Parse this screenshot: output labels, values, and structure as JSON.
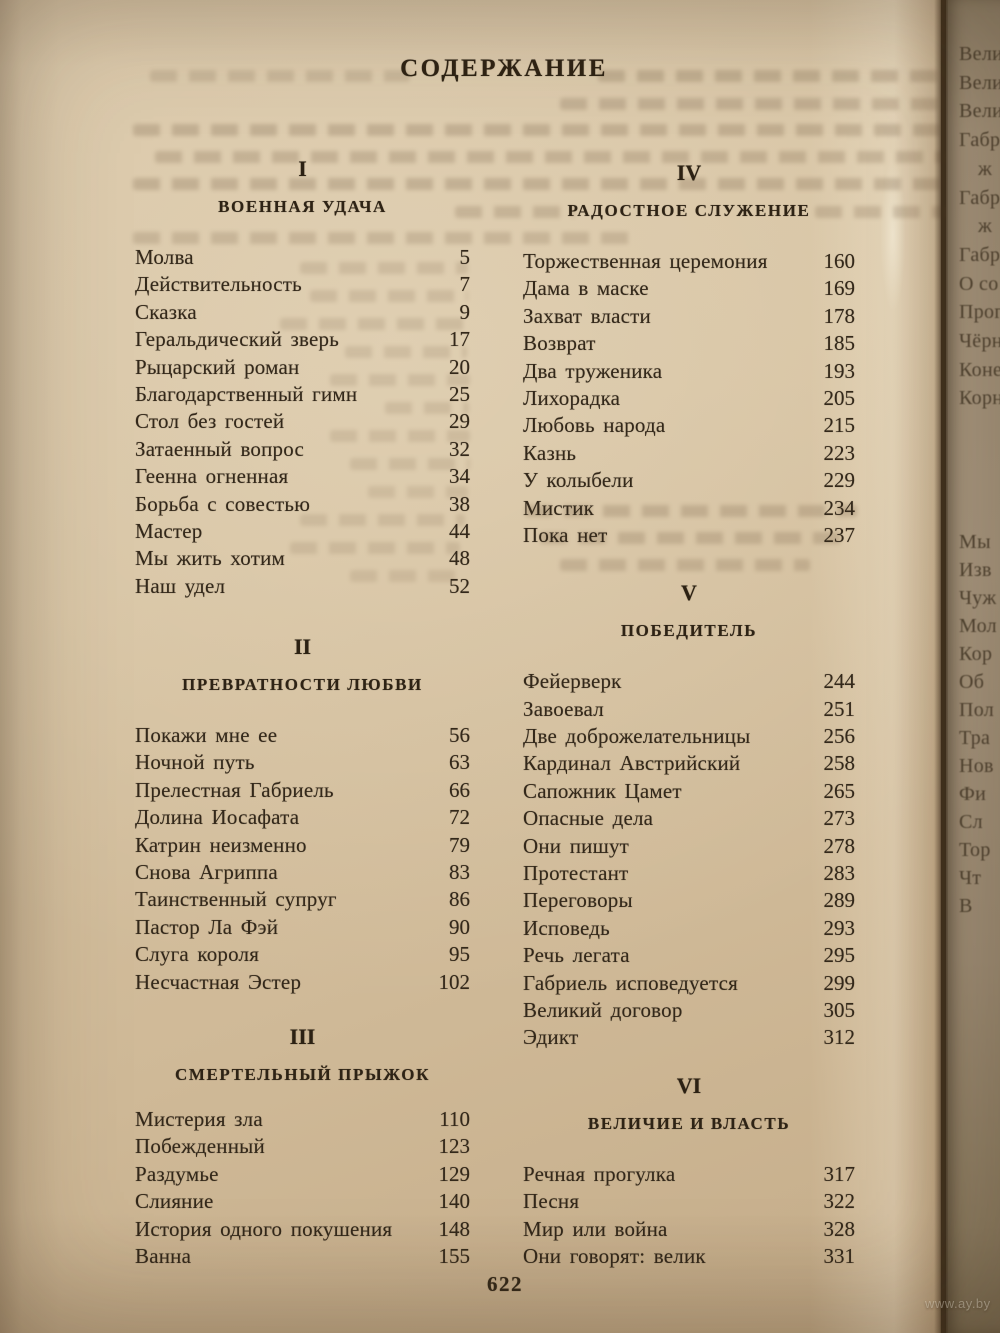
{
  "page": {
    "title": "СОДЕРЖАНИЕ",
    "folio": "622",
    "watermark": "www.ay.by"
  },
  "toc": {
    "columns": [
      {
        "name": "left",
        "sections": [
          {
            "numeral": "I",
            "heading": "ВОЕННАЯ УДАЧА",
            "entries": [
              [
                "Молва",
                "5"
              ],
              [
                "Действительность",
                "7"
              ],
              [
                "Сказка",
                "9"
              ],
              [
                "Геральдический зверь",
                "17"
              ],
              [
                "Рыцарский роман",
                "20"
              ],
              [
                "Благодарственный гимн",
                "25"
              ],
              [
                "Стол без гостей",
                "29"
              ],
              [
                "Затаенный вопрос",
                "32"
              ],
              [
                "Геенна огненная",
                "34"
              ],
              [
                "Борьба с совестью",
                "38"
              ],
              [
                "Мастер",
                "44"
              ],
              [
                "Мы жить хотим",
                "48"
              ],
              [
                "Наш удел",
                "52"
              ]
            ]
          },
          {
            "numeral": "II",
            "heading": "ПРЕВРАТНОСТИ ЛЮБВИ",
            "entries": [
              [
                "Покажи мне ее",
                "56"
              ],
              [
                "Ночной путь",
                "63"
              ],
              [
                "Прелестная Габриель",
                "66"
              ],
              [
                "Долина Иосафата",
                "72"
              ],
              [
                "Катрин неизменно",
                "79"
              ],
              [
                "Снова Агриппа",
                "83"
              ],
              [
                "Таинственный супруг",
                "86"
              ],
              [
                "Пастор Ла Фэй",
                "90"
              ],
              [
                "Слуга короля",
                "95"
              ],
              [
                "Несчастная Эстер",
                "102"
              ]
            ]
          },
          {
            "numeral": "III",
            "heading": "СМЕРТЕЛЬНЫЙ ПРЫЖОК",
            "entries": [
              [
                "Мистерия зла",
                "110"
              ],
              [
                "Побежденный",
                "123"
              ],
              [
                "Раздумье",
                "129"
              ],
              [
                "Слияние",
                "140"
              ],
              [
                "История одного покушения",
                "148"
              ],
              [
                "Ванна",
                "155"
              ]
            ]
          }
        ]
      },
      {
        "name": "right",
        "sections": [
          {
            "numeral": "IV",
            "heading": "РАДОСТНОЕ СЛУЖЕНИЕ",
            "entries": [
              [
                "Торжественная церемония",
                "160"
              ],
              [
                "Дама в маске",
                "169"
              ],
              [
                "Захват власти",
                "178"
              ],
              [
                "Возврат",
                "185"
              ],
              [
                "Два труженика",
                "193"
              ],
              [
                "Лихорадка",
                "205"
              ],
              [
                "Любовь народа",
                "215"
              ],
              [
                "Казнь",
                "223"
              ],
              [
                "У колыбели",
                "229"
              ],
              [
                "Мистик",
                "234"
              ],
              [
                "Пока нет",
                "237"
              ]
            ]
          },
          {
            "numeral": "V",
            "heading": "ПОБЕДИТЕЛЬ",
            "entries": [
              [
                "Фейерверк",
                "244"
              ],
              [
                "Завоевал",
                "251"
              ],
              [
                "Две доброжелательницы",
                "256"
              ],
              [
                "Кардинал Австрийский",
                "258"
              ],
              [
                "Сапожник Цамет",
                "265"
              ],
              [
                "Опасные дела",
                "273"
              ],
              [
                "Они пишут",
                "278"
              ],
              [
                "Протестант",
                "283"
              ],
              [
                "Переговоры",
                "289"
              ],
              [
                "Исповедь",
                "293"
              ],
              [
                "Речь легата",
                "295"
              ],
              [
                "Габриель исповедуется",
                "299"
              ],
              [
                "Великий договор",
                "305"
              ],
              [
                "Эдикт",
                "312"
              ]
            ]
          },
          {
            "numeral": "VI",
            "heading": "ВЕЛИЧИЕ И ВЛАСТЬ",
            "entries": [
              [
                "Речная прогулка",
                "317"
              ],
              [
                "Песня",
                "322"
              ],
              [
                "Мир или война",
                "328"
              ],
              [
                "Они говорят: велик",
                "331"
              ]
            ]
          }
        ]
      }
    ]
  },
  "next_page": {
    "top_fragments": [
      {
        "text": "Вели",
        "indent": false
      },
      {
        "text": "Вели",
        "indent": false
      },
      {
        "text": "Вели",
        "indent": false
      },
      {
        "text": "Габр",
        "indent": false
      },
      {
        "text": "ж",
        "indent": true
      },
      {
        "text": "Габр",
        "indent": false
      },
      {
        "text": "ж",
        "indent": true
      },
      {
        "text": "Габр",
        "indent": false
      },
      {
        "text": "О со",
        "indent": false
      },
      {
        "text": "Прог",
        "indent": false
      },
      {
        "text": "Чёрн",
        "indent": false
      },
      {
        "text": "Коне",
        "indent": false
      },
      {
        "text": "Корн",
        "indent": false
      }
    ],
    "bottom_fragments": [
      {
        "text": "Мы",
        "indent": false
      },
      {
        "text": "Изв",
        "indent": false
      },
      {
        "text": "Чуж",
        "indent": false
      },
      {
        "text": "Мол",
        "indent": false
      },
      {
        "text": "Кор",
        "indent": false
      },
      {
        "text": "Об",
        "indent": false
      },
      {
        "text": "Пол",
        "indent": false
      },
      {
        "text": "Тра",
        "indent": false
      },
      {
        "text": "Нов",
        "indent": false
      },
      {
        "text": "Фи",
        "indent": false
      },
      {
        "text": "Сл",
        "indent": false
      },
      {
        "text": "Тор",
        "indent": false
      },
      {
        "text": "Чт",
        "indent": false
      },
      {
        "text": "В",
        "indent": false
      }
    ]
  },
  "colors": {
    "paper": "#d6c2a1",
    "ink": "#33281a",
    "next_page_paper": "#a29179",
    "gutter_shadow": "#41311d"
  }
}
